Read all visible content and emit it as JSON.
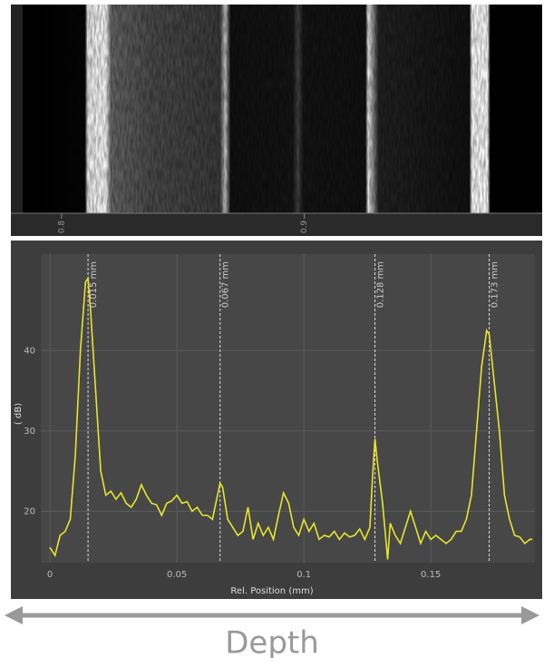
{
  "chart_data": [
    {
      "type": "image",
      "xlim": [
        0.784,
        0.998
      ],
      "xticks": [
        0.8,
        0.9
      ]
    },
    {
      "type": "line",
      "xlabel": "Rel. Position (mm)",
      "ylabel": "( dB)",
      "color": "#e6e62c",
      "grid": true,
      "xlim": [
        -0.0036,
        0.191
      ],
      "ylim": [
        13.6,
        52
      ],
      "xticks": [
        0,
        0.05,
        0.1,
        0.15
      ],
      "yticks": [
        20,
        30,
        40
      ],
      "x": [
        0,
        0.002,
        0.004,
        0.006,
        0.008,
        0.01,
        0.012,
        0.014,
        0.015,
        0.016,
        0.018,
        0.02,
        0.022,
        0.024,
        0.026,
        0.028,
        0.03,
        0.032,
        0.034,
        0.036,
        0.038,
        0.04,
        0.042,
        0.044,
        0.046,
        0.048,
        0.05,
        0.052,
        0.054,
        0.056,
        0.058,
        0.06,
        0.062,
        0.064,
        0.066,
        0.067,
        0.068,
        0.07,
        0.072,
        0.074,
        0.076,
        0.078,
        0.08,
        0.082,
        0.084,
        0.086,
        0.088,
        0.09,
        0.092,
        0.094,
        0.096,
        0.098,
        0.1,
        0.102,
        0.104,
        0.106,
        0.108,
        0.11,
        0.112,
        0.114,
        0.116,
        0.118,
        0.12,
        0.122,
        0.124,
        0.126,
        0.127,
        0.128,
        0.129,
        0.131,
        0.133,
        0.134,
        0.136,
        0.138,
        0.14,
        0.142,
        0.144,
        0.146,
        0.148,
        0.15,
        0.152,
        0.154,
        0.156,
        0.158,
        0.16,
        0.162,
        0.164,
        0.166,
        0.168,
        0.17,
        0.172,
        0.173,
        0.175,
        0.177,
        0.179,
        0.181,
        0.183,
        0.185,
        0.187,
        0.189,
        0.19
      ],
      "values": [
        15.5,
        14.5,
        17,
        17.5,
        19,
        27,
        40,
        48.5,
        49,
        45,
        35,
        25,
        22,
        22.5,
        21.5,
        22.3,
        21,
        20.5,
        21.5,
        23.3,
        22,
        21,
        20.8,
        19.5,
        21,
        21.3,
        22,
        21,
        21.2,
        20,
        20.5,
        19.5,
        19.5,
        19,
        22,
        23.5,
        23,
        19,
        18,
        17,
        17.5,
        20.5,
        16.5,
        18.5,
        17,
        18,
        16.5,
        19.5,
        22.3,
        21,
        18,
        17,
        19,
        17.5,
        18.5,
        16.5,
        17,
        16.8,
        17.5,
        16.5,
        17.3,
        16.8,
        17,
        17.8,
        16.5,
        18,
        24,
        29,
        26,
        21,
        14,
        18.5,
        17,
        16,
        18,
        20,
        18,
        16,
        17.5,
        16.5,
        17,
        16.5,
        16,
        16.5,
        17.5,
        17.5,
        19,
        22,
        30,
        38,
        42.5,
        42,
        36,
        30,
        22,
        19,
        17,
        16.8,
        16,
        16.5,
        16.5
      ],
      "annotations": [
        {
          "x": 0.015,
          "label": "0.015 mm"
        },
        {
          "x": 0.067,
          "label": "0.067 mm"
        },
        {
          "x": 0.128,
          "label": "0.128 mm"
        },
        {
          "x": 0.173,
          "label": "0.173 mm"
        }
      ]
    }
  ],
  "caption": "Depth"
}
